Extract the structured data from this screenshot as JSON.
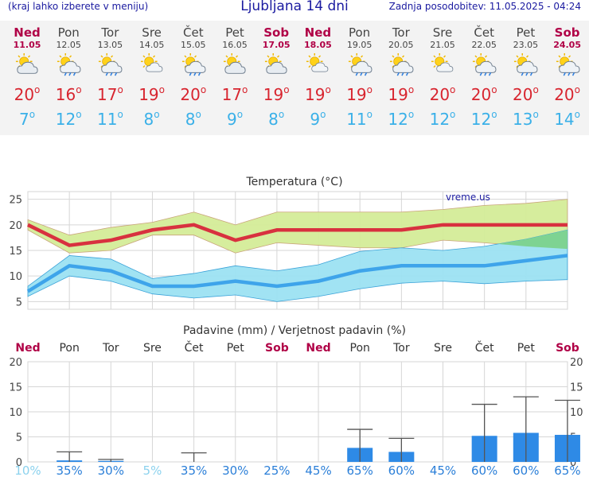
{
  "header": {
    "menu_hint": "(kraj lahko izberete v meniju)",
    "title": "Ljubljana 14 dni",
    "updated": "Zadnja posodobitev: 11.05.2025 - 04:24"
  },
  "days": [
    {
      "name": "Ned",
      "date": "11.05",
      "weekend": true,
      "icon": "partly-cloudy-icon",
      "tmax": "20",
      "tmin": "7"
    },
    {
      "name": "Pon",
      "date": "12.05",
      "weekend": false,
      "icon": "sun-rain-icon",
      "tmax": "16",
      "tmin": "12"
    },
    {
      "name": "Tor",
      "date": "13.05",
      "weekend": false,
      "icon": "sun-rain-icon",
      "tmax": "17",
      "tmin": "11"
    },
    {
      "name": "Sre",
      "date": "14.05",
      "weekend": false,
      "icon": "sun-cloud-icon",
      "tmax": "19",
      "tmin": "8"
    },
    {
      "name": "Čet",
      "date": "15.05",
      "weekend": false,
      "icon": "sun-rain-icon",
      "tmax": "20",
      "tmin": "8"
    },
    {
      "name": "Pet",
      "date": "16.05",
      "weekend": false,
      "icon": "partly-cloudy-icon",
      "tmax": "17",
      "tmin": "9"
    },
    {
      "name": "Sob",
      "date": "17.05",
      "weekend": true,
      "icon": "partly-cloudy-icon",
      "tmax": "19",
      "tmin": "8"
    },
    {
      "name": "Ned",
      "date": "18.05",
      "weekend": true,
      "icon": "sun-cloud-icon",
      "tmax": "19",
      "tmin": "9"
    },
    {
      "name": "Pon",
      "date": "19.05",
      "weekend": false,
      "icon": "sun-rain-icon",
      "tmax": "19",
      "tmin": "11"
    },
    {
      "name": "Tor",
      "date": "20.05",
      "weekend": false,
      "icon": "sun-rain-icon",
      "tmax": "19",
      "tmin": "12"
    },
    {
      "name": "Sre",
      "date": "21.05",
      "weekend": false,
      "icon": "sun-cloud-icon",
      "tmax": "20",
      "tmin": "12"
    },
    {
      "name": "Čet",
      "date": "22.05",
      "weekend": false,
      "icon": "sun-rain-icon",
      "tmax": "20",
      "tmin": "12"
    },
    {
      "name": "Pet",
      "date": "23.05",
      "weekend": false,
      "icon": "sun-rain-icon",
      "tmax": "20",
      "tmin": "13"
    },
    {
      "name": "Sob",
      "date": "24.05",
      "weekend": true,
      "icon": "sun-rain-icon",
      "tmax": "20",
      "tmin": "14"
    }
  ],
  "colors": {
    "max_line": "#d8313f",
    "max_band": "#d4ec98",
    "min_line": "#3ea4ea",
    "min_band": "#9ce2f2",
    "overlap_band": "#7ed392",
    "precip_bar": "#2e8ae6",
    "weekend_text": "#b00046",
    "grid": "#d6d6d6"
  },
  "chart_data": [
    {
      "type": "line",
      "title": "Temperatura (°C)",
      "watermark": "vreme.us",
      "x_labels": [
        "Ned",
        "Pon",
        "Tor",
        "Sre",
        "Čet",
        "Pet",
        "Sob",
        "Ned",
        "Pon",
        "Tor",
        "Sre",
        "Čet",
        "Pet",
        "Sob"
      ],
      "yticks": [
        5,
        10,
        15,
        20,
        25
      ],
      "ylim": [
        3.5,
        26.5
      ],
      "series": [
        {
          "role": "max",
          "values": [
            20,
            16,
            17,
            19,
            20,
            17,
            19,
            19,
            19,
            19,
            20,
            20,
            20,
            20
          ],
          "upper": [
            21,
            18,
            19.5,
            20.5,
            22.5,
            20,
            22.5,
            22.5,
            22.5,
            22.5,
            23,
            23.8,
            24.2,
            25
          ],
          "lower": [
            19,
            14.5,
            15,
            18,
            18,
            14.5,
            16.5,
            16,
            15.5,
            15.5,
            17,
            16.5,
            15.8,
            15.3
          ]
        },
        {
          "role": "min",
          "values": [
            7,
            12,
            11,
            8,
            8,
            9,
            8,
            9,
            11,
            12,
            12,
            12,
            13,
            14
          ],
          "upper": [
            8,
            14,
            13.3,
            9.5,
            10.5,
            12,
            11,
            12.2,
            14.8,
            15.5,
            15,
            15.8,
            17.2,
            19
          ],
          "lower": [
            6,
            10,
            9,
            6.5,
            5.7,
            6.3,
            5,
            6,
            7.5,
            8.6,
            9,
            8.5,
            9,
            9.3
          ]
        }
      ]
    },
    {
      "type": "bar",
      "title": "Padavine (mm) / Verjetnost padavin (%)",
      "x_labels": [
        "Ned",
        "Pon",
        "Tor",
        "Sre",
        "Čet",
        "Pet",
        "Sob",
        "Ned",
        "Pon",
        "Tor",
        "Sre",
        "Čet",
        "Pet",
        "Sob"
      ],
      "yticks": [
        0,
        5,
        10,
        15,
        20
      ],
      "ylim": [
        0,
        20
      ],
      "values": [
        0,
        0.3,
        0.2,
        0,
        0,
        0,
        0,
        0,
        2.8,
        2.0,
        0,
        5.2,
        5.8,
        5.4
      ],
      "err_upper": [
        0,
        2.0,
        0.5,
        0,
        1.8,
        0,
        0,
        0,
        6.5,
        4.7,
        0,
        11.5,
        13.0,
        12.3
      ],
      "probability": [
        "10%",
        "35%",
        "30%",
        "5%",
        "35%",
        "30%",
        "25%",
        "45%",
        "65%",
        "60%",
        "45%",
        "60%",
        "60%",
        "65%"
      ]
    }
  ]
}
